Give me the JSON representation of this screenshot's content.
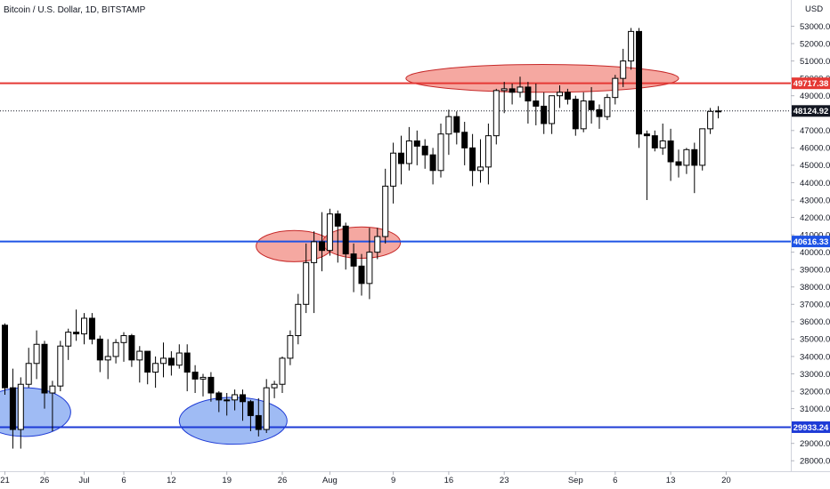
{
  "header": {
    "symbol_title": "Bitcoin / U.S. Dollar, 1D, BITSTAMP"
  },
  "chart_data": {
    "type": "candlestick",
    "currency": "USD",
    "ylim": [
      27000,
      54000
    ],
    "y_ticks": [
      28000,
      29000,
      30000,
      31000,
      32000,
      33000,
      34000,
      35000,
      36000,
      37000,
      38000,
      39000,
      40000,
      41000,
      42000,
      43000,
      44000,
      45000,
      46000,
      47000,
      48000,
      49000,
      50000,
      51000,
      52000,
      53000
    ],
    "x_ticks": [
      {
        "label": "21",
        "index": 0
      },
      {
        "label": "26",
        "index": 5
      },
      {
        "label": "Jul",
        "index": 10
      },
      {
        "label": "6",
        "index": 15
      },
      {
        "label": "12",
        "index": 21
      },
      {
        "label": "19",
        "index": 28
      },
      {
        "label": "26",
        "index": 35
      },
      {
        "label": "Aug",
        "index": 41
      },
      {
        "label": "9",
        "index": 49
      },
      {
        "label": "16",
        "index": 56
      },
      {
        "label": "23",
        "index": 63
      },
      {
        "label": "Sep",
        "index": 72
      },
      {
        "label": "6",
        "index": 77
      },
      {
        "label": "13",
        "index": 84
      },
      {
        "label": "20",
        "index": 91
      }
    ],
    "colors": {
      "up_body": "#ffffff",
      "down_body": "#000000",
      "wick": "#000000",
      "resistance": "#e53935",
      "support": "#1e53e5",
      "price_line": "#131722",
      "ellipse_red_fill": "#f28b82",
      "ellipse_blue_fill": "#7fa4f0"
    },
    "horizontal_levels": [
      {
        "value": 49717.38,
        "label": "49717.38",
        "color": "#e53935"
      },
      {
        "value": 40616.33,
        "label": "40616.33",
        "color": "#1e53e5"
      },
      {
        "value": 29933.24,
        "label": "29933.24",
        "color": "#1e3bd6"
      }
    ],
    "last_price": {
      "value": 48124.92,
      "label": "48124.92"
    },
    "annotations": [
      {
        "shape": "ellipse",
        "color": "blue",
        "center_index": 2.5,
        "center_value": 30800,
        "radius_bars": 5.8,
        "radius_value": 1400
      },
      {
        "shape": "ellipse",
        "color": "blue",
        "center_index": 28.8,
        "center_value": 30300,
        "radius_bars": 6.8,
        "radius_value": 1350
      },
      {
        "shape": "ellipse",
        "color": "red",
        "center_index": 36.5,
        "center_value": 40350,
        "radius_bars": 4.8,
        "radius_value": 900
      },
      {
        "shape": "ellipse",
        "color": "red",
        "center_index": 45.0,
        "center_value": 40550,
        "radius_bars": 4.9,
        "radius_value": 900
      },
      {
        "shape": "ellipse",
        "color": "red",
        "center_index": 67.8,
        "center_value": 50000,
        "radius_bars": 17.2,
        "radius_value": 800
      }
    ],
    "candles": [
      [
        35800,
        35900,
        31800,
        32200
      ],
      [
        32200,
        33300,
        28700,
        29800
      ],
      [
        29800,
        32800,
        28700,
        32400
      ],
      [
        32400,
        34500,
        32200,
        33600
      ],
      [
        33600,
        35500,
        32700,
        34700
      ],
      [
        34700,
        34900,
        31000,
        31900
      ],
      [
        31900,
        32600,
        29700,
        32300
      ],
      [
        32300,
        34900,
        32000,
        34600
      ],
      [
        34600,
        35600,
        33800,
        35400
      ],
      [
        35400,
        36700,
        34900,
        35300
      ],
      [
        35300,
        36500,
        34700,
        36200
      ],
      [
        36200,
        36500,
        34700,
        35000
      ],
      [
        35000,
        35200,
        33100,
        33800
      ],
      [
        33800,
        35000,
        32700,
        34000
      ],
      [
        34000,
        35000,
        33600,
        34800
      ],
      [
        34800,
        35400,
        33700,
        35200
      ],
      [
        35200,
        35300,
        33400,
        33800
      ],
      [
        33800,
        34600,
        32500,
        34300
      ],
      [
        34300,
        34300,
        32400,
        33100
      ],
      [
        33100,
        34000,
        32200,
        33600
      ],
      [
        33600,
        34800,
        32800,
        33900
      ],
      [
        33900,
        34300,
        32900,
        33500
      ],
      [
        33500,
        34700,
        33300,
        34200
      ],
      [
        34200,
        34700,
        32000,
        33100
      ],
      [
        33100,
        33500,
        31900,
        32700
      ],
      [
        32700,
        33000,
        31700,
        32800
      ],
      [
        32800,
        33100,
        31400,
        31900
      ],
      [
        31900,
        32000,
        30800,
        31500
      ],
      [
        31500,
        31900,
        30600,
        31500
      ],
      [
        31500,
        32100,
        30900,
        31800
      ],
      [
        31800,
        32100,
        30300,
        31400
      ],
      [
        31400,
        31500,
        29700,
        30600
      ],
      [
        30600,
        31600,
        29400,
        29800
      ],
      [
        29800,
        32700,
        29600,
        32200
      ],
      [
        32200,
        32600,
        31600,
        32400
      ],
      [
        32400,
        34000,
        31900,
        33900
      ],
      [
        33900,
        35500,
        33500,
        35200
      ],
      [
        35200,
        37600,
        34700,
        37000
      ],
      [
        37000,
        40500,
        36500,
        39400
      ],
      [
        39400,
        41200,
        36500,
        40600
      ],
      [
        40600,
        42300,
        38900,
        40100
      ],
      [
        40100,
        42500,
        39800,
        42200
      ],
      [
        42200,
        42400,
        39400,
        41500
      ],
      [
        41500,
        41700,
        39000,
        39900
      ],
      [
        39900,
        40500,
        37700,
        39200
      ],
      [
        39200,
        39900,
        37500,
        38200
      ],
      [
        38200,
        41400,
        37300,
        40000
      ],
      [
        40000,
        41400,
        39600,
        40900
      ],
      [
        40900,
        44800,
        40500,
        43800
      ],
      [
        43800,
        46300,
        42800,
        45700
      ],
      [
        45700,
        46700,
        43900,
        45100
      ],
      [
        45100,
        47200,
        44700,
        46400
      ],
      [
        46400,
        47000,
        45000,
        46100
      ],
      [
        46100,
        46500,
        44800,
        45600
      ],
      [
        45600,
        46000,
        43900,
        44700
      ],
      [
        44700,
        47400,
        44300,
        46800
      ],
      [
        46800,
        48200,
        45600,
        47800
      ],
      [
        47800,
        48100,
        46200,
        46900
      ],
      [
        46900,
        47500,
        45000,
        46000
      ],
      [
        46000,
        46800,
        43800,
        44700
      ],
      [
        44700,
        46500,
        44000,
        44900
      ],
      [
        44900,
        47400,
        43900,
        46700
      ],
      [
        46700,
        49400,
        46200,
        49300
      ],
      [
        49300,
        49800,
        48000,
        49400
      ],
      [
        49400,
        49700,
        48500,
        49200
      ],
      [
        49200,
        50100,
        48900,
        49500
      ],
      [
        49500,
        49800,
        47400,
        48700
      ],
      [
        48700,
        49700,
        47300,
        48400
      ],
      [
        48400,
        49200,
        46800,
        47400
      ],
      [
        47400,
        49000,
        46800,
        49000
      ],
      [
        49000,
        49600,
        48300,
        49200
      ],
      [
        49200,
        49400,
        48500,
        48800
      ],
      [
        48800,
        49000,
        46700,
        47100
      ],
      [
        47100,
        49200,
        46900,
        48700
      ],
      [
        48700,
        49500,
        47400,
        48200
      ],
      [
        48200,
        48500,
        47100,
        47800
      ],
      [
        47800,
        49100,
        47600,
        48900
      ],
      [
        48900,
        50200,
        48500,
        50000
      ],
      [
        50000,
        51700,
        49500,
        51000
      ],
      [
        51000,
        52900,
        50500,
        52700
      ],
      [
        52700,
        52900,
        46000,
        46800
      ],
      [
        46800,
        47000,
        43000,
        46700
      ],
      [
        46700,
        47000,
        45800,
        46000
      ],
      [
        46000,
        47400,
        45600,
        46400
      ],
      [
        46400,
        47100,
        44100,
        45200
      ],
      [
        45200,
        45900,
        44300,
        45000
      ],
      [
        45000,
        46000,
        44500,
        45900
      ],
      [
        45900,
        46300,
        43400,
        45000
      ],
      [
        45000,
        47100,
        44700,
        47100
      ],
      [
        47100,
        48300,
        46800,
        48100
      ],
      [
        48100,
        48400,
        47700,
        48125
      ]
    ]
  }
}
